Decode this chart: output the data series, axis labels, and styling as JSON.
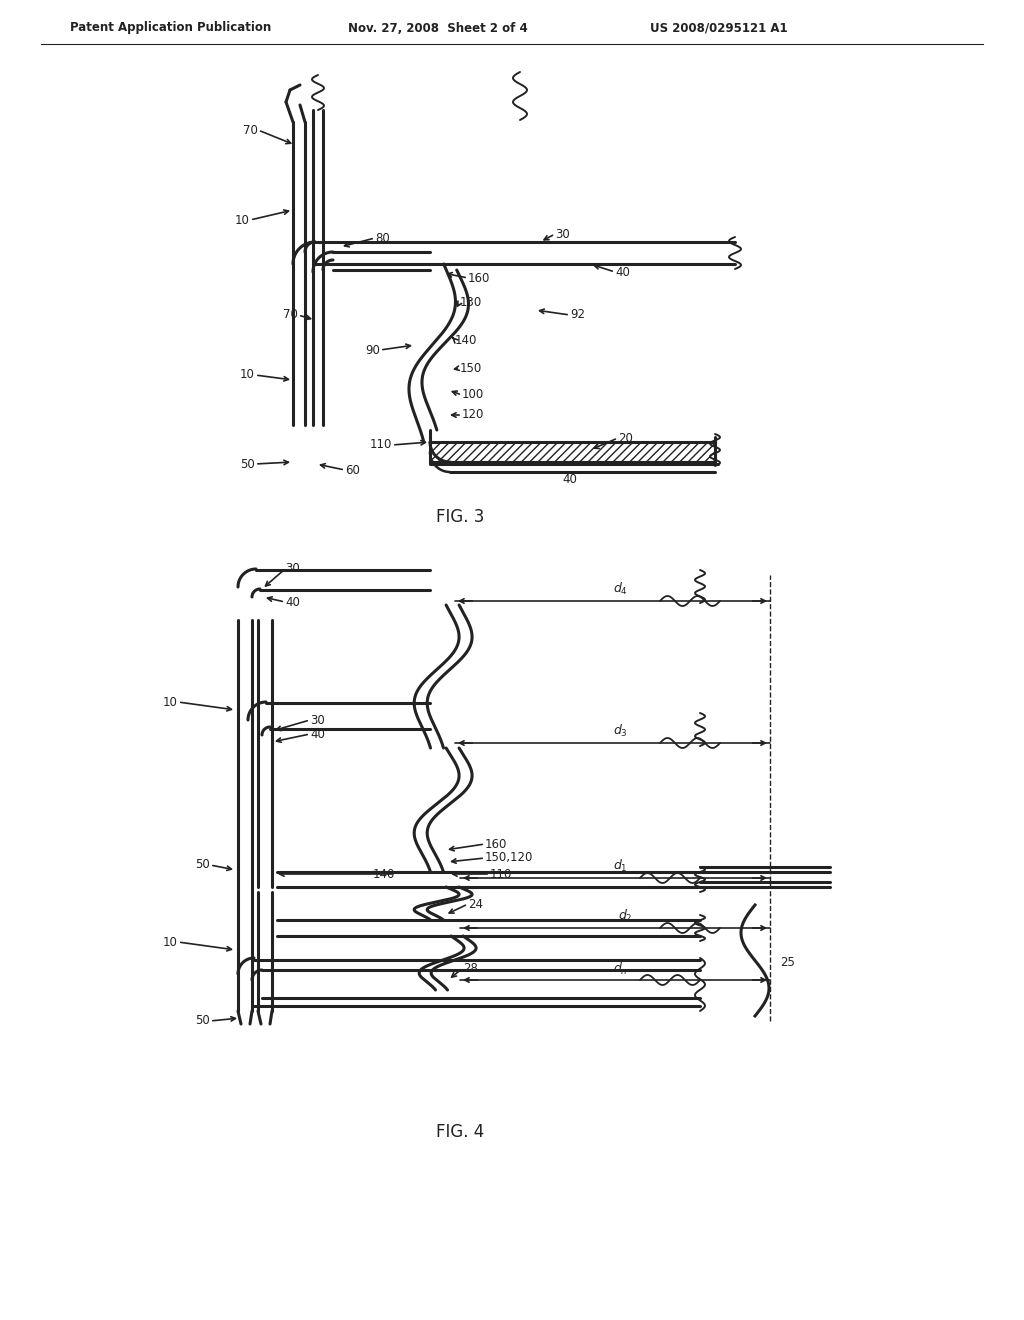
{
  "bg": "#ffffff",
  "lc": "#222222",
  "header1": "Patent Application Publication",
  "header2": "Nov. 27, 2008  Sheet 2 of 4",
  "header3": "US 2008/0295121 A1",
  "fig3_label": "FIG. 3",
  "fig4_label": "FIG. 4",
  "lw_main": 2.2,
  "lw_thin": 1.3,
  "fs_label": 8.5,
  "fs_fig": 12
}
